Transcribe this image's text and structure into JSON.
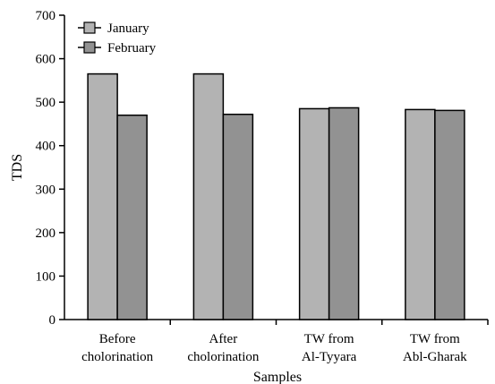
{
  "chart_data": {
    "type": "bar",
    "categories": [
      [
        "Before",
        "cholorination"
      ],
      [
        "After",
        "cholorination"
      ],
      [
        "TW from",
        "Al-Tyyara"
      ],
      [
        "TW from",
        "Abl-Gharak"
      ]
    ],
    "series": [
      {
        "name": "January",
        "values": [
          565,
          565,
          485,
          483
        ],
        "color": "#b3b3b3"
      },
      {
        "name": "February",
        "values": [
          470,
          472,
          487,
          481
        ],
        "color": "#929292"
      }
    ],
    "xlabel": "Samples",
    "ylabel": "TDS",
    "ylim": [
      0,
      700
    ],
    "yticks": [
      0,
      100,
      200,
      300,
      400,
      500,
      600,
      700
    ],
    "grid": false,
    "legend": "top-left"
  }
}
